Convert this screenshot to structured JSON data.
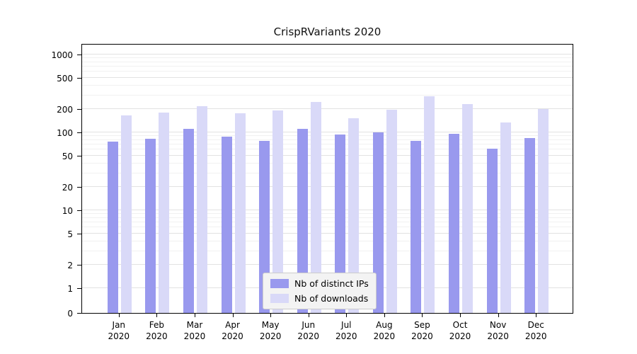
{
  "chart_data": {
    "type": "bar",
    "title": "CrispRVariants 2020",
    "xlabel": "",
    "ylabel": "",
    "yscale": "log above 1, linear segment 0-1 (symlog-like)",
    "yticks": [
      0,
      1,
      2,
      5,
      10,
      20,
      50,
      100,
      200,
      500,
      1000
    ],
    "y_minor_gridlines": [
      3,
      4,
      6,
      7,
      8,
      9,
      30,
      40,
      60,
      70,
      80,
      90,
      300,
      400,
      600,
      700,
      800,
      900
    ],
    "ylim": [
      0,
      1400
    ],
    "grid": "horizontal only",
    "categories": [
      "Jan",
      "Feb",
      "Mar",
      "Apr",
      "May",
      "Jun",
      "Jul",
      "Aug",
      "Sep",
      "Oct",
      "Nov",
      "Dec"
    ],
    "year_label": "2020",
    "series": [
      {
        "name": "Nb of distinct IPs",
        "color": "#9999ee",
        "values": [
          76,
          82,
          110,
          88,
          78,
          110,
          94,
          100,
          78,
          96,
          62,
          84
        ]
      },
      {
        "name": "Nb of downloads",
        "color": "#d9d9f8",
        "values": [
          165,
          178,
          215,
          175,
          190,
          245,
          152,
          195,
          290,
          230,
          135,
          200
        ]
      }
    ],
    "legend_position": "inside plot, lower center"
  },
  "colors": {
    "axis": "#000000",
    "major_grid": "#e2e2e2",
    "minor_grid": "#f1f1f1",
    "background": "#ffffff",
    "legend_bg": "#f3f3f3",
    "legend_border": "#cccccc"
  }
}
